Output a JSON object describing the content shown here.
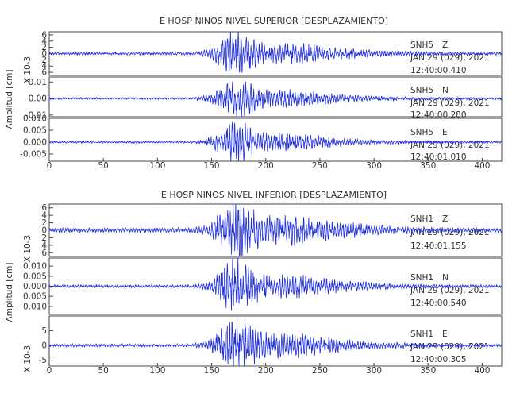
{
  "chart_data": [
    {
      "type": "line",
      "title": "E HOSP NINOS NIVEL SUPERIOR [DESPLAZAMIENTO]",
      "ylabel": "Amplitud [cm]",
      "x_ticks": [
        "0",
        "50",
        "100",
        "150",
        "200",
        "250",
        "300",
        "350",
        "400"
      ],
      "xlim": [
        0,
        418
      ],
      "panels": [
        {
          "name": "SNH5 Z",
          "channel_label": "SNH5",
          "component": "Z",
          "date_label": "JAN 29 (029), 2021",
          "time_label": "12:40:00.410",
          "ylim": [
            -7,
            7
          ],
          "y_ticks": [
            "6",
            "4",
            "2",
            "0",
            "2",
            "4",
            "6"
          ],
          "exponent_label": "X 10-3",
          "noise": 0.45,
          "peak": 6.5
        },
        {
          "name": "SNH5 N",
          "channel_label": "SNH5",
          "component": "N",
          "date_label": "JAN 29 (029), 2021",
          "time_label": "12:40:00.280",
          "ylim": [
            -0.011,
            0.013
          ],
          "y_ticks": [
            "0.01",
            "0.00",
            "-0.01"
          ],
          "y_tick_values": [
            0.01,
            0.0,
            -0.01
          ],
          "noise": 0.0006,
          "peak": 0.011
        },
        {
          "name": "SNH5 E",
          "channel_label": "SNH5",
          "component": "E",
          "date_label": "JAN 29 (029), 2021",
          "time_label": "12:40:01.010",
          "ylim": [
            -0.008,
            0.01
          ],
          "y_ticks": [
            "0.010",
            "0.005",
            "0.000",
            "-0.005"
          ],
          "y_tick_values": [
            0.01,
            0.005,
            0.0,
            -0.005
          ],
          "noise": 0.0004,
          "peak": 0.008
        }
      ]
    },
    {
      "type": "line",
      "title": "E HOSP NINOS NIVEL INFERIOR [DESPLAZAMIENTO]",
      "ylabel": "Amplitud [cm]",
      "x_ticks": [
        "0",
        "50",
        "100",
        "150",
        "200",
        "250",
        "300",
        "350",
        "400"
      ],
      "xlim": [
        0,
        418
      ],
      "panels": [
        {
          "name": "SNH1 Z",
          "channel_label": "SNH1",
          "component": "Z",
          "date_label": "JAN 29 (029), 2021",
          "time_label": "12:40:01.155",
          "ylim": [
            -7,
            7
          ],
          "y_ticks": [
            "6",
            "4",
            "2",
            "0",
            "2",
            "4",
            "6"
          ],
          "exponent_label": "X 10-3",
          "noise": 0.6,
          "peak": 6.8
        },
        {
          "name": "SNH1 N",
          "channel_label": "SNH1",
          "component": "N",
          "date_label": "JAN 29 (029), 2021",
          "time_label": "12:40:00.540",
          "ylim": [
            -0.014,
            0.014
          ],
          "y_ticks": [
            "0.010",
            "0.005",
            "0.000",
            "0.005",
            "0.010"
          ],
          "y_tick_values": [
            0.01,
            0.005,
            0.0,
            -0.005,
            -0.01
          ],
          "noise": 0.0007,
          "peak": 0.012
        },
        {
          "name": "SNH1 E",
          "channel_label": "SNH1",
          "component": "E",
          "date_label": "JAN 29 (029), 2021",
          "time_label": "12:40:00.305",
          "ylim": [
            -7,
            10
          ],
          "y_ticks": [
            "5",
            "0",
            "-5"
          ],
          "y_tick_values": [
            5,
            0,
            -5
          ],
          "exponent_label": "X 10-3",
          "noise": 0.5,
          "peak": 8.5
        }
      ]
    }
  ]
}
